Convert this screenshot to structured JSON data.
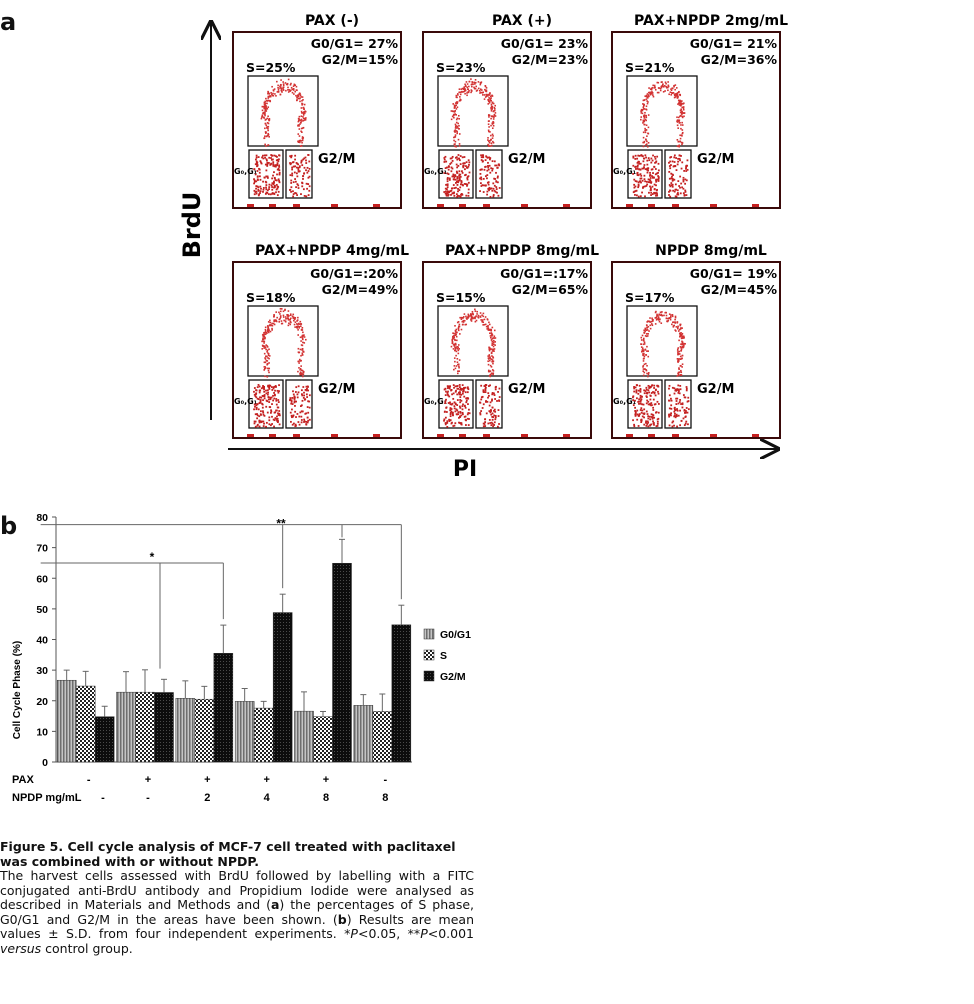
{
  "figure": {
    "panel_a_letter": "a",
    "panel_b_letter": "b",
    "caption_title": "Figure 5. Cell cycle analysis of MCF-7 cell treated with paclitaxel was combined with or without NPDP.",
    "caption_body": {
      "p1": "The harvest cells assessed with BrdU followed by labelling with a FITC conjugated anti-BrdU antibody and Propidium Iodide were analysed as described in Materials and Methods and (",
      "a": "a",
      "p2": ") the percentages of S phase, G0/G1 and G2/M in the areas have been shown. (",
      "b": "b",
      "p3": ") Results are mean values ± S.D. from four independent experiments. *",
      "P1": "P",
      "p4": "<0.05, **",
      "P2": "P",
      "p5": "<0.001 ",
      "versus": "versus",
      "p6": " control group."
    }
  },
  "chart_data": [
    {
      "type": "scatter",
      "description_kind": "flow-cytometry-grid",
      "xlabel": "PI",
      "ylabel": "BrdU",
      "gate_label_g2m": "G2/M",
      "gate_label_g0g1": "G₀,G₁",
      "panels": [
        {
          "title": "PAX (-)",
          "g0g1": "G0/G1= 27%",
          "g2m": "G2/M=15%",
          "s": "S=25%"
        },
        {
          "title": "PAX (+)",
          "g0g1": "G0/G1= 23%",
          "g2m": "G2/M=23%",
          "s": "S=23%"
        },
        {
          "title": "PAX+NPDP 2mg/mL",
          "g0g1": "G0/G1= 21%",
          "g2m": "G2/M=36%",
          "s": "S=21%"
        },
        {
          "title": "PAX+NPDP 4mg/mL",
          "g0g1": "G0/G1=:20%",
          "g2m": "G2/M=49%",
          "s": "S=18%"
        },
        {
          "title": "PAX+NPDP 8mg/mL",
          "g0g1": "G0/G1=:17%",
          "g2m": "G2/M=65%",
          "s": "S=15%"
        },
        {
          "title": "NPDP 8mg/mL",
          "g0g1": "G0/G1= 19%",
          "g2m": "G2/M=45%",
          "s": "S=17%"
        }
      ]
    },
    {
      "type": "bar",
      "ylabel": "Cell Cycle Phase (%)",
      "ylim": [
        0,
        80
      ],
      "yticks": [
        0,
        10,
        20,
        30,
        40,
        50,
        60,
        70,
        80
      ],
      "row_labels": [
        "PAX",
        "NPDP mg/mL"
      ],
      "categories_pax": [
        "-",
        "+",
        "+",
        "+",
        "+",
        "-"
      ],
      "categories_npdp": [
        "-",
        "-",
        "2",
        "4",
        "8",
        "8"
      ],
      "series": [
        {
          "name": "G0/G1",
          "values": [
            26.7,
            22.8,
            20.8,
            19.8,
            16.6,
            18.5
          ],
          "errors": [
            3.3,
            6.7,
            5.7,
            4.2,
            6.3,
            3.5
          ],
          "color": "#9a9a9a"
        },
        {
          "name": "S",
          "values": [
            24.8,
            22.8,
            20.5,
            17.6,
            14.8,
            16.5
          ],
          "errors": [
            4.8,
            7.3,
            4.2,
            2.2,
            1.7,
            5.7
          ],
          "color": "#6a6a6a"
        },
        {
          "name": "G2/M",
          "values": [
            14.8,
            22.7,
            35.5,
            48.8,
            64.9,
            44.8
          ],
          "errors": [
            3.4,
            4.3,
            9.2,
            6.0,
            7.8,
            6.4
          ],
          "color": "#1a1a1a"
        }
      ],
      "annotations": [
        {
          "text": "*",
          "from": 0,
          "to": [
            2
          ]
        },
        {
          "text": "**",
          "from": 0,
          "to": [
            3,
            4,
            5
          ]
        }
      ],
      "legend_position": "right"
    }
  ]
}
